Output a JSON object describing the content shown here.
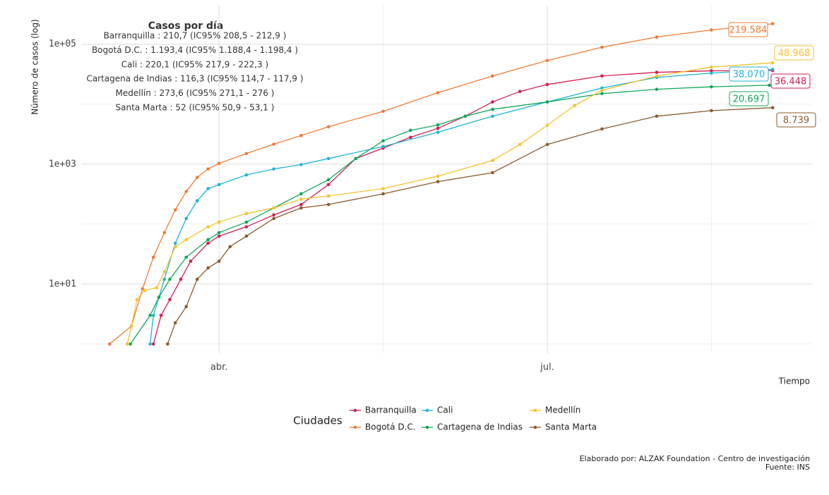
{
  "chart_data": {
    "type": "line",
    "y_label": "Número de casos (log)",
    "x_label": "Tiempo",
    "log_y": true,
    "grid": true,
    "xlim": [
      2.74,
      9.42
    ],
    "xticks": [
      {
        "value": 4,
        "label": "abr."
      },
      {
        "value": 7,
        "label": "jul."
      }
    ],
    "minor_xgrid": [
      5.5,
      8.5
    ],
    "ylim": [
      0.7,
      440000
    ],
    "yticks": [
      {
        "value": 10,
        "label": "1e+01"
      },
      {
        "value": 1000,
        "label": "1e+03"
      },
      {
        "value": 100000,
        "label": "1e+05"
      }
    ],
    "minor_ygrid": [
      1,
      100,
      10000
    ],
    "annotation": {
      "title": "Casos por día",
      "lines": [
        "Barranquilla : 210,7 (IC95% 208,5 - 212,9 )",
        "Bogotá D.C. : 1.193,4 (IC95% 1.188,4 - 1.198,4 )",
        "Cali : 220,1 (IC95% 217,9 - 222,3 )",
        "Cartagena de Indias : 116,3 (IC95% 114,7 - 117,9 )",
        "Medellín : 273,6 (IC95% 271,1 - 276 )",
        "Santa Marta : 52 (IC95% 50,9 - 53,1 )"
      ]
    },
    "legend_title": "Ciudades",
    "legend_position": "bottom",
    "caption": [
      "Elaborado por: ALZAK Foundation - Centro de investigación",
      "Fuente: INS"
    ],
    "series": [
      {
        "name": "Barranquilla",
        "color": "#d21f4f",
        "x": [
          3.4,
          3.47,
          3.55,
          3.65,
          3.74,
          3.9,
          4.0,
          4.25,
          4.5,
          4.75,
          5.0,
          5.25,
          5.5,
          5.75,
          6.0,
          6.25,
          6.5,
          6.75,
          7.0,
          7.5,
          8.0,
          8.5,
          9.06
        ],
        "values": [
          1,
          3,
          5.5,
          12,
          24,
          48,
          63,
          90,
          142,
          212,
          456,
          1240,
          1850,
          2800,
          3960,
          6300,
          10900,
          16300,
          21300,
          29500,
          34000,
          36000,
          36448
        ],
        "value_labels": [
          null,
          null,
          null,
          null,
          null,
          null,
          null,
          null,
          null,
          null,
          null,
          null,
          null,
          null,
          null,
          null,
          null,
          null,
          null,
          null,
          null,
          null,
          "36.448"
        ]
      },
      {
        "name": "Bogotá D.C.",
        "color": "#f07a35",
        "x": [
          3.0,
          3.2,
          3.3,
          3.4,
          3.5,
          3.6,
          3.7,
          3.8,
          3.9,
          4.0,
          4.25,
          4.5,
          4.75,
          5.0,
          5.5,
          6.0,
          6.5,
          7.0,
          7.5,
          8.0,
          8.5,
          9.06
        ],
        "values": [
          1,
          2,
          8.3,
          28,
          72,
          172,
          350,
          600,
          830,
          1030,
          1500,
          2150,
          3000,
          4200,
          7600,
          15500,
          29500,
          53500,
          89000,
          132000,
          173000,
          219584
        ],
        "value_labels": [
          null,
          null,
          null,
          null,
          null,
          null,
          null,
          null,
          null,
          null,
          null,
          null,
          null,
          null,
          null,
          null,
          null,
          null,
          null,
          null,
          null,
          "219.584"
        ]
      },
      {
        "name": "Cali",
        "color": "#1fb3d6",
        "x": [
          3.37,
          3.4,
          3.45,
          3.5,
          3.6,
          3.7,
          3.8,
          3.9,
          4.0,
          4.25,
          4.5,
          4.75,
          5.0,
          5.5,
          6.0,
          6.5,
          7.0,
          7.5,
          8.0,
          8.5,
          9.06
        ],
        "values": [
          1,
          3,
          6,
          12,
          48,
          124,
          245,
          390,
          456,
          660,
          830,
          980,
          1240,
          1970,
          3400,
          6300,
          10900,
          18600,
          28000,
          33000,
          38070
        ],
        "value_labels": [
          null,
          null,
          null,
          null,
          null,
          null,
          null,
          null,
          null,
          null,
          null,
          null,
          null,
          null,
          null,
          null,
          null,
          null,
          null,
          null,
          "38.070"
        ]
      },
      {
        "name": "Cartagena de Indias",
        "color": "#10a85a",
        "x": [
          3.19,
          3.37,
          3.45,
          3.55,
          3.7,
          3.9,
          4.0,
          4.25,
          4.5,
          4.75,
          5.0,
          5.25,
          5.5,
          5.75,
          6.0,
          6.25,
          6.5,
          7.0,
          7.5,
          8.0,
          8.5,
          9.03
        ],
        "values": [
          1,
          3,
          6,
          12,
          28,
          55,
          72,
          108,
          186,
          320,
          550,
          1240,
          2450,
          3660,
          4500,
          6300,
          8200,
          10900,
          15000,
          17700,
          19500,
          20697
        ],
        "value_labels": [
          null,
          null,
          null,
          null,
          null,
          null,
          null,
          null,
          null,
          null,
          null,
          null,
          null,
          null,
          null,
          null,
          null,
          null,
          null,
          null,
          null,
          "20.697"
        ]
      },
      {
        "name": "Medellín",
        "color": "#f5c231",
        "x": [
          3.16,
          3.2,
          3.25,
          3.32,
          3.43,
          3.5,
          3.6,
          3.7,
          3.9,
          4.0,
          4.25,
          4.5,
          4.75,
          5.0,
          5.5,
          6.0,
          6.5,
          6.75,
          7.0,
          7.25,
          7.5,
          8.0,
          8.5,
          9.06
        ],
        "values": [
          1,
          2,
          5.5,
          7.8,
          8.7,
          16,
          42,
          55,
          90,
          108,
          150,
          186,
          260,
          295,
          390,
          630,
          1150,
          2130,
          4450,
          9500,
          17000,
          29500,
          41500,
          48968
        ],
        "value_labels": [
          null,
          null,
          null,
          null,
          null,
          null,
          null,
          null,
          null,
          null,
          null,
          null,
          null,
          null,
          null,
          null,
          null,
          null,
          null,
          null,
          null,
          null,
          null,
          "48.968"
        ]
      },
      {
        "name": "Santa Marta",
        "color": "#8a5a2e",
        "x": [
          3.53,
          3.6,
          3.7,
          3.8,
          3.9,
          4.0,
          4.1,
          4.25,
          4.5,
          4.75,
          5.0,
          5.5,
          6.0,
          6.5,
          7.0,
          7.5,
          8.0,
          8.5,
          9.06
        ],
        "values": [
          1,
          2.25,
          4.2,
          12,
          18.6,
          24,
          42,
          63,
          124,
          186,
          212,
          320,
          510,
          720,
          2130,
          3860,
          6300,
          7800,
          8739
        ],
        "value_labels": [
          null,
          null,
          null,
          null,
          null,
          null,
          null,
          null,
          null,
          null,
          null,
          null,
          null,
          null,
          null,
          null,
          null,
          null,
          "8.739"
        ]
      }
    ]
  }
}
